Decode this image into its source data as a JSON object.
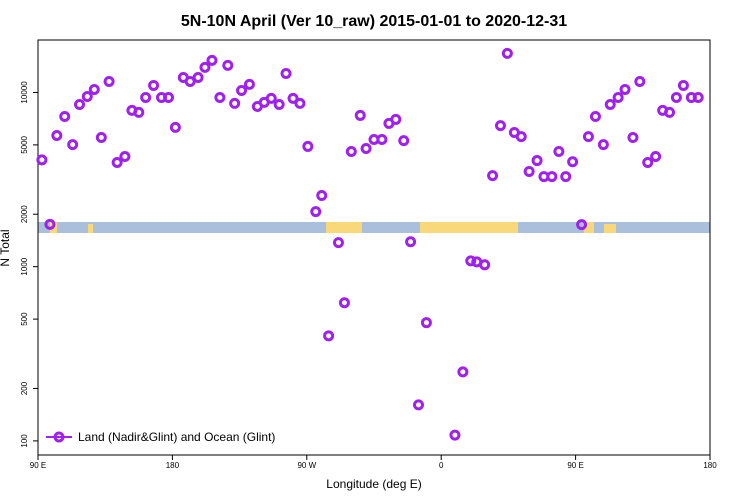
{
  "chart_data": {
    "type": "scatter",
    "title": "5N-10N April (Ver 10_raw)   2015-01-01 to 2020-12-31",
    "x_label": "Longitude (deg E)",
    "y_label": "N Total",
    "log_y": true,
    "legend": "bottom-left",
    "xlim": [
      90,
      540
    ],
    "ylim": [
      83,
      20000
    ],
    "xticks": [
      {
        "value": 90,
        "label": "90 E"
      },
      180,
      {
        "value": 270,
        "label": "90 W"
      },
      {
        "value": 360,
        "label": "0"
      },
      {
        "value": 450,
        "label": "90 E"
      },
      {
        "value": 540,
        "label": "180"
      }
    ],
    "yticks": [
      100,
      200,
      500,
      1000,
      2000,
      5000,
      10000
    ],
    "series": [
      {
        "name": "Land (Nadir&Glint) and Ocean (Glint)",
        "color": "#a020f0",
        "x": [
          92.6,
          98,
          102.6,
          107.9,
          113.2,
          117.8,
          123,
          127.7,
          132.4,
          137.6,
          143,
          148.2,
          152.9,
          157.5,
          162.1,
          167.4,
          172.7,
          177.4,
          182,
          187.3,
          191.9,
          197.2,
          201.8,
          206.5,
          211.8,
          217.1,
          221.7,
          226.3,
          231.6,
          236.9,
          241.5,
          246.2,
          251.5,
          256.1,
          260.8,
          265.4,
          270.7,
          276,
          280,
          284.6,
          291.2,
          295.2,
          299.8,
          305.8,
          309.7,
          315,
          320.3,
          325,
          329.6,
          334.9,
          339.5,
          344.8,
          350.1,
          369.2,
          374.5,
          379.8,
          383.8,
          389.1,
          394.4,
          399.7,
          404.3,
          409,
          413.6,
          418.9,
          424.2,
          428.8,
          434.1,
          438.8,
          443.4,
          448,
          454,
          458.6,
          463.3,
          468.6,
          473.2,
          478.5,
          483.1,
          488.4,
          493,
          498.3,
          503.6,
          508.3,
          512.9,
          517.5,
          522.2,
          527.5,
          532.1
        ],
        "values": [
          4100,
          1750,
          5660,
          7280,
          5020,
          8530,
          9480,
          10400,
          5510,
          11560,
          3960,
          4290,
          7890,
          7680,
          9350,
          10970,
          9350,
          9350,
          6300,
          12190,
          11560,
          12190,
          13930,
          15280,
          9350,
          14300,
          8650,
          10260,
          11120,
          8310,
          8770,
          9250,
          8530,
          12850,
          9250,
          8650,
          4900,
          2070,
          2560,
          401,
          1375,
          621,
          4580,
          7380,
          4770,
          5370,
          5370,
          6640,
          7000,
          5290,
          1390,
          161,
          477,
          108,
          249,
          1080,
          1065,
          1025,
          3330,
          6450,
          16750,
          5890,
          5580,
          3520,
          4065,
          3290,
          3290,
          4580,
          3290,
          4000,
          1743,
          5580,
          7280,
          5020,
          8530,
          9350,
          10400,
          5510,
          11560,
          3960,
          4290,
          7890,
          7680,
          9350,
          10970,
          9350,
          9350
        ]
      }
    ]
  }
}
